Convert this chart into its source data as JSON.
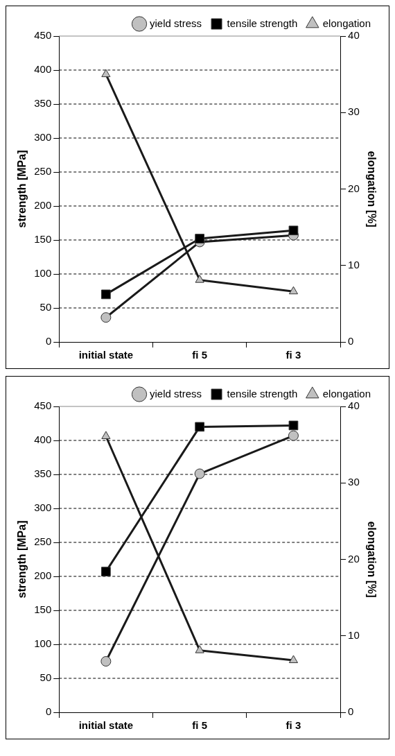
{
  "chart_data": [
    {
      "type": "line",
      "categories": [
        "initial state",
        "fi 5",
        "fi 3"
      ],
      "ylabel": "strength [MPa]",
      "y2label": "elongation [%]",
      "ylim": [
        0,
        450
      ],
      "yticks": [
        0,
        50,
        100,
        150,
        200,
        250,
        300,
        350,
        400,
        450
      ],
      "y2lim": [
        0,
        40
      ],
      "y2ticks": [
        0,
        10,
        20,
        30,
        40
      ],
      "grid": "y",
      "legend": "top right",
      "series": [
        {
          "name": "yield stress",
          "color": "#c0c0c0",
          "marker": "circle",
          "values": [
            36,
            147,
            157
          ]
        },
        {
          "name": "tensile strength",
          "color": "#000000",
          "marker": "square",
          "values": [
            70,
            152,
            164
          ]
        },
        {
          "name": "elongation",
          "color": "#c0c0c0",
          "marker": "triangle",
          "axis": "y2",
          "values": [
            35,
            8.1,
            6.6
          ]
        }
      ]
    },
    {
      "type": "line",
      "categories": [
        "initial state",
        "fi 5",
        "fi 3"
      ],
      "ylabel": "strength [MPa]",
      "y2label": "elongation [%]",
      "ylim": [
        0,
        450
      ],
      "yticks": [
        0,
        50,
        100,
        150,
        200,
        250,
        300,
        350,
        400,
        450
      ],
      "y2lim": [
        0,
        40
      ],
      "y2ticks": [
        0,
        10,
        20,
        30,
        40
      ],
      "grid": "y",
      "legend": "top right",
      "series": [
        {
          "name": "yield stress",
          "color": "#c0c0c0",
          "marker": "circle",
          "values": [
            75,
            351,
            407
          ]
        },
        {
          "name": "tensile strength",
          "color": "#000000",
          "marker": "square",
          "values": [
            207,
            420,
            422
          ]
        },
        {
          "name": "elongation",
          "color": "#c0c0c0",
          "marker": "triangle",
          "axis": "y2",
          "values": [
            36.1,
            8.1,
            6.8
          ]
        }
      ]
    }
  ]
}
